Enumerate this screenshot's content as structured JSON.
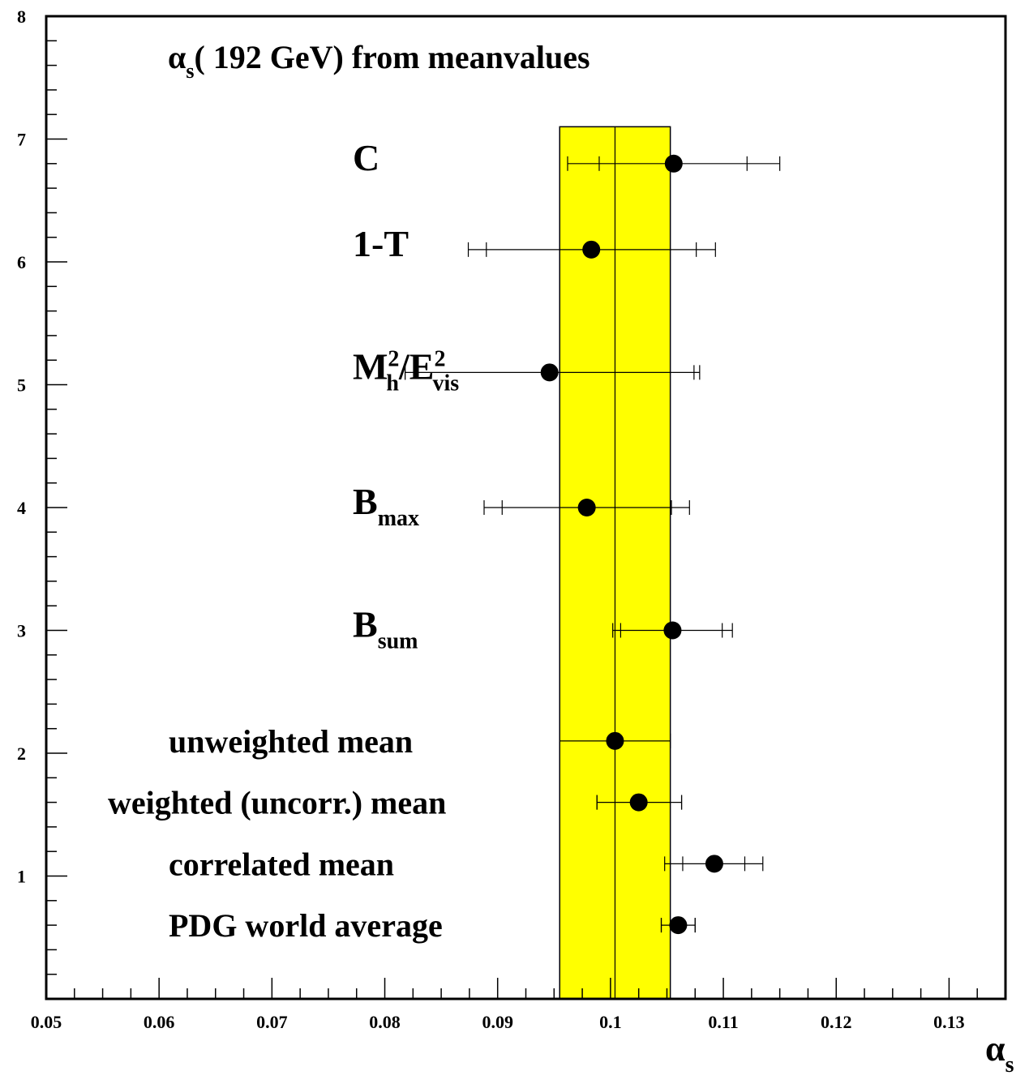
{
  "chart_data": {
    "type": "scatter",
    "title_prefix": "α",
    "title_sub": "s",
    "title_rest": "( 192  GeV) from meanvalues",
    "x_axis_symbol": "α",
    "x_axis_sub": "s",
    "xlim": [
      0.05,
      0.135
    ],
    "ylim": [
      0,
      8
    ],
    "x_ticks": [
      {
        "v": 0.05,
        "label": "0.05"
      },
      {
        "v": 0.06,
        "label": "0.06"
      },
      {
        "v": 0.07,
        "label": "0.07"
      },
      {
        "v": 0.08,
        "label": "0.08"
      },
      {
        "v": 0.09,
        "label": "0.09"
      },
      {
        "v": 0.1,
        "label": "0.1"
      },
      {
        "v": 0.11,
        "label": "0.11"
      },
      {
        "v": 0.12,
        "label": "0.12"
      },
      {
        "v": 0.13,
        "label": "0.13"
      }
    ],
    "y_ticks": [
      {
        "v": 1,
        "label": "1"
      },
      {
        "v": 2,
        "label": "2"
      },
      {
        "v": 3,
        "label": "3"
      },
      {
        "v": 4,
        "label": "4"
      },
      {
        "v": 5,
        "label": "5"
      },
      {
        "v": 6,
        "label": "6"
      },
      {
        "v": 7,
        "label": "7"
      },
      {
        "v": 8,
        "label": "8"
      }
    ],
    "band": {
      "x_min": 0.0955,
      "x_max": 0.1053,
      "y_min": 0,
      "y_max": 7.1,
      "center": 0.1004,
      "color": "#ffff00"
    },
    "points": [
      {
        "label": "C",
        "sub": "",
        "sup": "",
        "y": 6.8,
        "x": 0.1056,
        "err_inner": [
          0.099,
          0.1121
        ],
        "err_outer": [
          0.0962,
          0.115
        ]
      },
      {
        "label": "1-T",
        "sub": "",
        "sup": "",
        "y": 6.1,
        "x": 0.0983,
        "err_inner": [
          0.089,
          0.1076
        ],
        "err_outer": [
          0.0874,
          0.1093
        ]
      },
      {
        "label": "M",
        "sub": "h",
        "sup": "2",
        "label2": "/E",
        "sub2": "vis",
        "sup2": "2",
        "y": 5.1,
        "x": 0.0946,
        "err_inner": [
          0.0818,
          0.1074
        ],
        "err_outer": [
          0.0818,
          0.1079
        ]
      },
      {
        "label": "B",
        "sub": "max",
        "sup": "",
        "y": 4.0,
        "x": 0.0979,
        "err_inner": [
          0.0904,
          0.1054
        ],
        "err_outer": [
          0.0888,
          0.107
        ]
      },
      {
        "label": "B",
        "sub": "sum",
        "sup": "",
        "y": 3.0,
        "x": 0.1055,
        "err_inner": [
          0.1009,
          0.1099
        ],
        "err_outer": [
          0.1002,
          0.1108
        ]
      },
      {
        "label": "unweighted mean",
        "sub": "",
        "sup": "",
        "y": 2.1,
        "x": 0.1004,
        "err_inner": [
          0.0955,
          0.1053
        ],
        "err_outer": [
          0.0955,
          0.1053
        ]
      },
      {
        "label": "weighted (uncorr.) mean",
        "sub": "",
        "sup": "",
        "y": 1.6,
        "x": 0.1025,
        "err_inner": [
          0.0988,
          0.1063
        ],
        "err_outer": [
          0.0988,
          0.1063
        ]
      },
      {
        "label": "correlated mean",
        "sub": "",
        "sup": "",
        "y": 1.1,
        "x": 0.1092,
        "err_inner": [
          0.1064,
          0.1119
        ],
        "err_outer": [
          0.1048,
          0.1135
        ]
      },
      {
        "label": "PDG world average",
        "sub": "",
        "sup": "",
        "y": 0.6,
        "x": 0.106,
        "err_inner": [
          0.1045,
          0.1075
        ],
        "err_outer": [
          0.1045,
          0.1075
        ]
      }
    ]
  }
}
